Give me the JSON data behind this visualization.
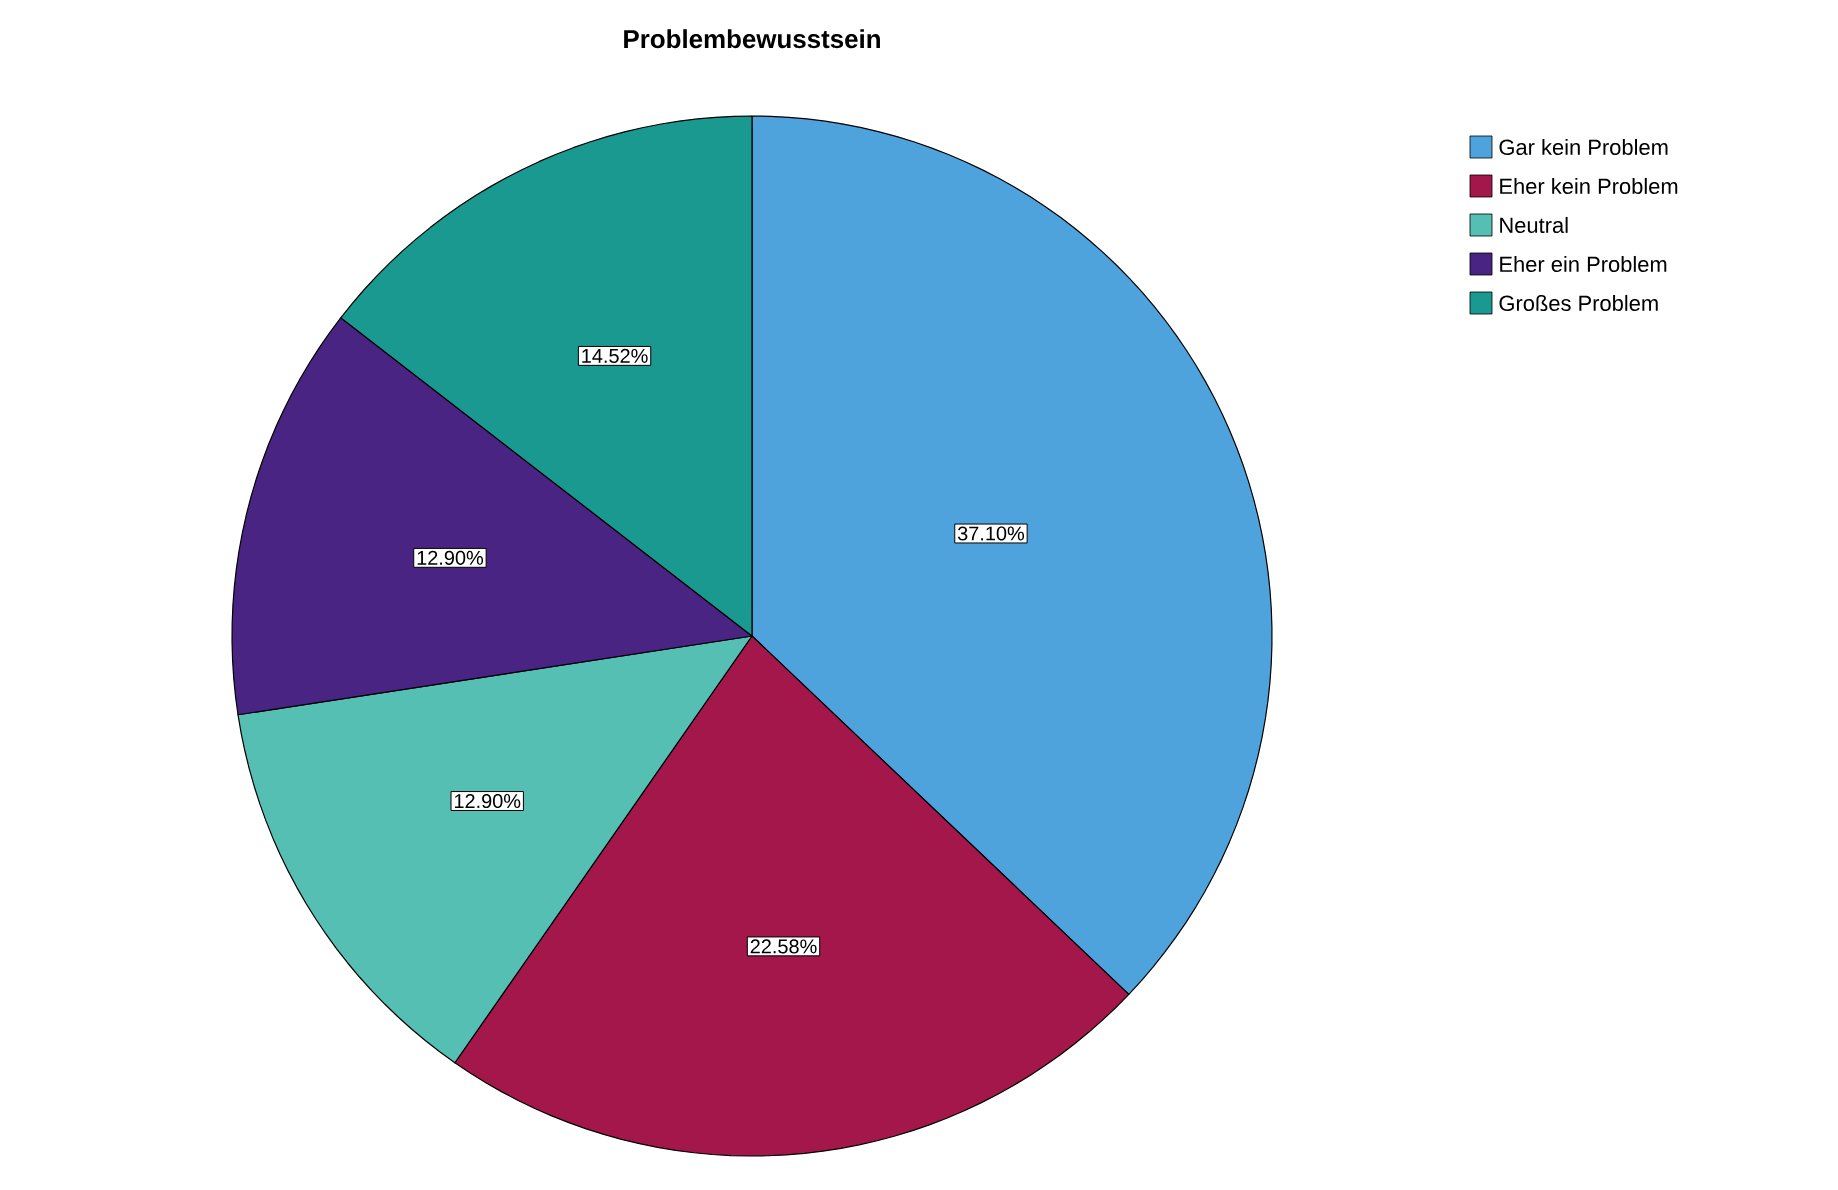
{
  "chart_data": {
    "type": "pie",
    "title": "Problembewusstsein",
    "categories": [
      "Gar kein Problem",
      "Eher kein Problem",
      "Neutral",
      "Eher ein Problem",
      "Großes Problem"
    ],
    "values": [
      37.1,
      22.58,
      12.9,
      12.9,
      14.52
    ],
    "value_labels": [
      "37.10%",
      "22.58%",
      "12.90%",
      "12.90%",
      "14.52%"
    ],
    "colors": [
      "#4fa3dc",
      "#a3174a",
      "#55bfb4",
      "#4a2482",
      "#1a9990"
    ],
    "legend": "top right"
  }
}
